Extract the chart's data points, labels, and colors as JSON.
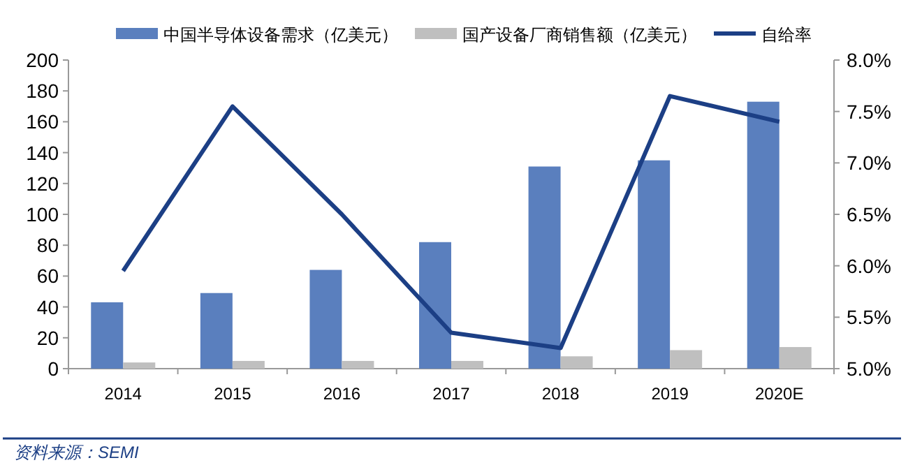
{
  "chart_data": {
    "type": "bar",
    "categories": [
      "2014",
      "2015",
      "2016",
      "2017",
      "2018",
      "2019",
      "2020E"
    ],
    "series": [
      {
        "name": "中国半导体设备需求（亿美元）",
        "color": "#5a7fbe",
        "values": [
          43,
          49,
          64,
          82,
          131,
          135,
          173
        ]
      },
      {
        "name": "国产设备厂商销售额（亿美元）",
        "color": "#bfbfbf",
        "values": [
          4,
          5,
          5,
          5,
          8,
          12,
          14
        ]
      },
      {
        "name": "自给率",
        "type": "line",
        "axis": "y2",
        "color": "#1c3f85",
        "values": [
          5.95,
          7.55,
          6.5,
          5.35,
          5.2,
          7.65,
          7.4
        ]
      }
    ],
    "ylim": [
      0,
      200
    ],
    "yticks": [
      0,
      20,
      40,
      60,
      80,
      100,
      120,
      140,
      160,
      180,
      200
    ],
    "y2lim": [
      5,
      8
    ],
    "y2ticks": [
      {
        "value": 5,
        "label": "5.0%"
      },
      {
        "value": 5.5,
        "label": "5.5%"
      },
      {
        "value": 6,
        "label": "6.0%"
      },
      {
        "value": 6.5,
        "label": "6.5%"
      },
      {
        "value": 7,
        "label": "7.0%"
      },
      {
        "value": 7.5,
        "label": "7.5%"
      },
      {
        "value": 8,
        "label": "8.0%"
      }
    ],
    "legend": "top",
    "grid": false,
    "annotations": [
      "资料来源：SEMI"
    ]
  }
}
